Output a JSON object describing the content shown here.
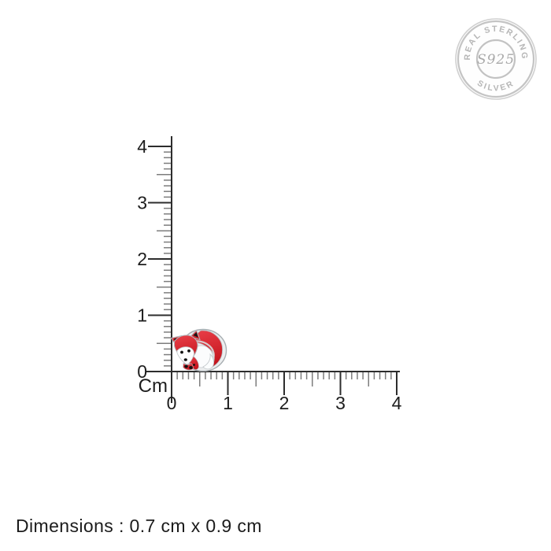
{
  "badge": {
    "arc_top": "REAL STERLING",
    "center": "S925",
    "arc_bottom": "SILVER"
  },
  "ruler": {
    "unit_label": "Cm",
    "axis_tick_labels": [
      "0",
      "1",
      "2",
      "3",
      "4"
    ],
    "minor_ticks_per_cm": 10
  },
  "product": {
    "item": "red enamel fox charm",
    "width_cm": "0.9",
    "height_cm": "0.7"
  },
  "caption": "Dimensions : 0.7 cm x 0.9 cm",
  "colors": {
    "enamel_red": "#d5222b",
    "enamel_red_dark": "#c5161f",
    "enamel_red_light": "#ea4049",
    "silver_outline": "#a8aeb2",
    "silver_light": "#eceeef",
    "badge_gray": "#b6b6b6",
    "badge_center_gray": "#a9a9a9",
    "ruler_major": "#2d2d2d",
    "ruler_minor": "#7d7d7d",
    "label_text": "#1d1d1d"
  }
}
